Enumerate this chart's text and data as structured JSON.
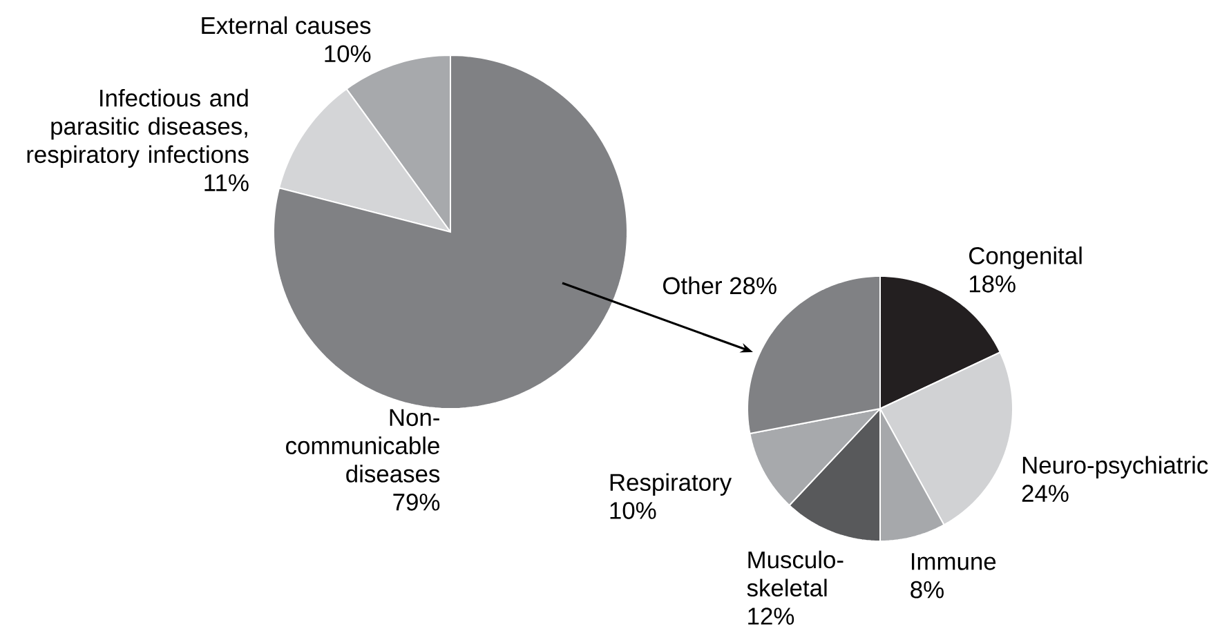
{
  "chart_data": [
    {
      "type": "pie",
      "categories": [
        "External causes",
        "Infectious and parasitic diseases, respiratory infections",
        "Non-communicable diseases"
      ],
      "values": [
        10,
        11,
        79
      ],
      "value_labels": [
        "10%",
        "11%",
        "79%"
      ],
      "colors": [
        "#a7a9ac",
        "#d4d5d7",
        "#808184"
      ]
    },
    {
      "type": "pie",
      "categories": [
        "Congenital",
        "Neuro-psychiatric",
        "Immune",
        "Musculo-skeletal",
        "Respiratory",
        "Other"
      ],
      "values": [
        18,
        24,
        8,
        12,
        10,
        28
      ],
      "value_labels": [
        "18%",
        "24%",
        "8%",
        "12%",
        "10%",
        "28%"
      ],
      "colors": [
        "#231f20",
        "#d1d2d4",
        "#a6a8ab",
        "#58595b",
        "#a7a9ac",
        "#808184"
      ]
    }
  ]
}
